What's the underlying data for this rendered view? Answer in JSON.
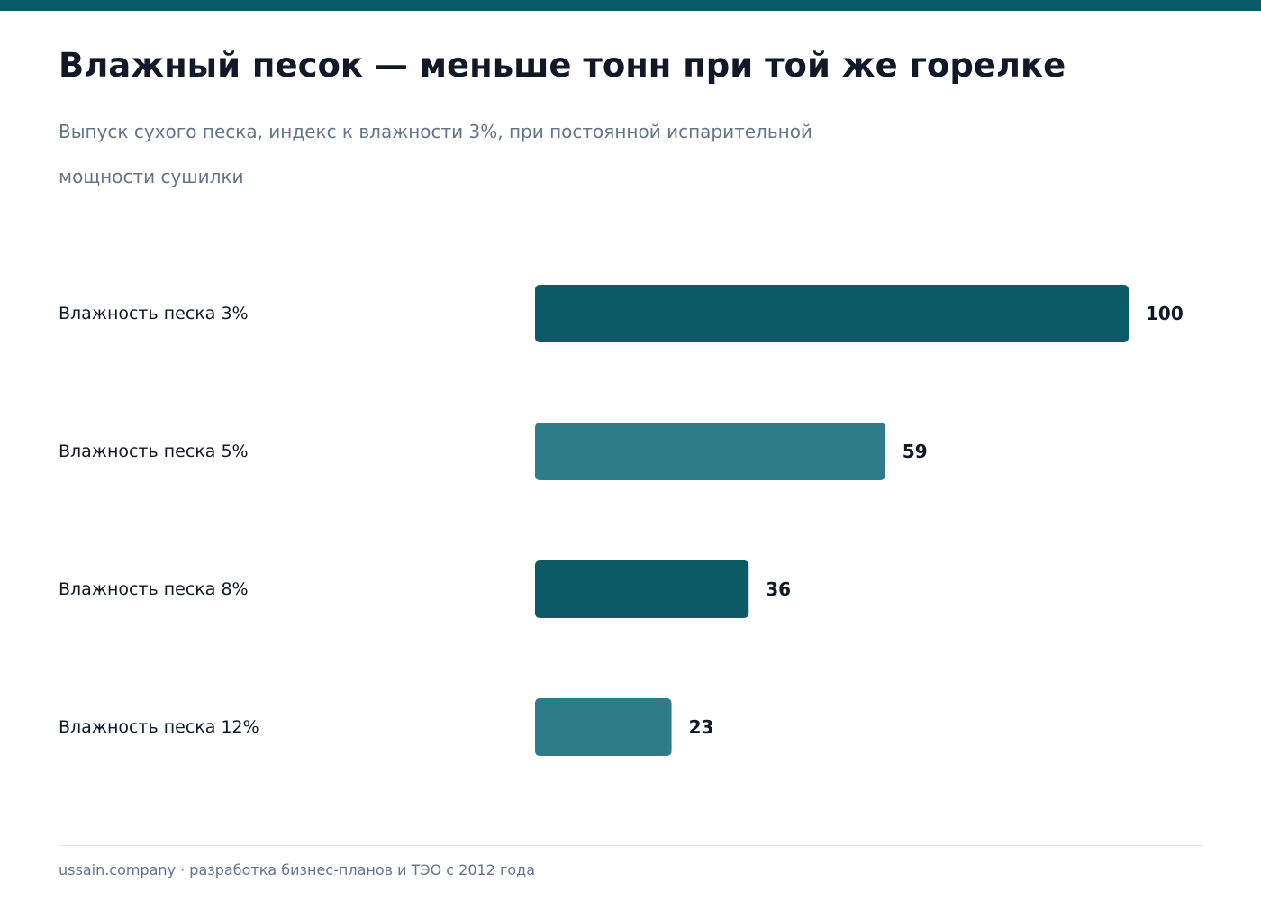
{
  "header": {
    "title": "Влажный песок — меньше тонн при той же горелке",
    "subtitle": "Выпуск сухого песка, индекс к влажности 3%, при постоянной испарительной мощности сушилки"
  },
  "footer": {
    "text": "ussain.company · разработка бизнес-планов и ТЭО с 2012 года"
  },
  "colors": {
    "accent": "#0d5a67",
    "bar_dark": "#0d5a67",
    "bar_light": "#2e7c8a",
    "text": "#111827",
    "muted": "#64748b"
  },
  "chart_data": {
    "type": "bar",
    "orientation": "horizontal",
    "categories": [
      "Влажность песка 3%",
      "Влажность песка 5%",
      "Влажность песка 8%",
      "Влажность песка 12%"
    ],
    "values": [
      100,
      59,
      36,
      23
    ],
    "value_labels": [
      "100",
      "59",
      "36",
      "23"
    ],
    "bar_colors": [
      "#0d5a67",
      "#2e7c8a",
      "#0d5a67",
      "#2e7c8a"
    ],
    "xlim": [
      0,
      100
    ],
    "grid": false,
    "legend": "none"
  }
}
